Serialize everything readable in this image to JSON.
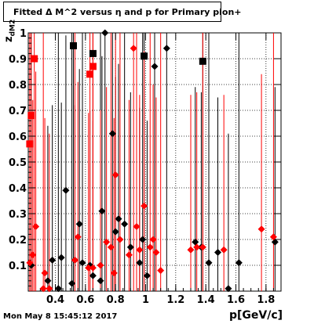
{
  "chart_data": {
    "type": "scatter",
    "title": "Fitted Δ M^2 versus η and p for Primary pion+",
    "xlabel": "p[GeV/c]",
    "ylabel": "z",
    "ylabel_sub": "dM2",
    "xlim": [
      0.22,
      1.9
    ],
    "ylim": [
      0,
      1
    ],
    "x_ticks": [
      0.4,
      0.6,
      0.8,
      1.0,
      1.2,
      1.4,
      1.6,
      1.8
    ],
    "x_tick_labels": [
      "0.4",
      "0.6",
      "0.8",
      "1",
      "1.2",
      "1.4",
      "1.6",
      "1.8"
    ],
    "y_ticks": [
      0.1,
      0.2,
      0.3,
      0.4,
      0.5,
      0.6,
      0.7,
      0.8,
      0.9,
      1.0
    ],
    "y_tick_labels": [
      "0.1",
      "0.2",
      "0.3",
      "0.4",
      "0.5",
      "0.6",
      "0.7",
      "0.8",
      "0.9",
      "1"
    ],
    "grid": true,
    "series": [
      {
        "color": "#000000",
        "marker": "diamond",
        "points": [
          [
            0.24,
            0.1
          ],
          [
            0.35,
            0.04
          ],
          [
            0.38,
            0.12
          ],
          [
            0.42,
            0.01
          ],
          [
            0.44,
            0.13
          ],
          [
            0.47,
            0.39
          ],
          [
            0.51,
            0.03
          ],
          [
            0.53,
            0.12
          ],
          [
            0.56,
            0.26
          ],
          [
            0.58,
            0.11
          ],
          [
            0.63,
            0.1
          ],
          [
            0.65,
            0.06
          ],
          [
            0.7,
            0.04
          ],
          [
            0.71,
            0.31
          ],
          [
            0.73,
            1.0
          ],
          [
            0.78,
            0.61
          ],
          [
            0.8,
            0.23
          ],
          [
            0.82,
            0.28
          ],
          [
            0.86,
            0.26
          ],
          [
            0.9,
            0.17
          ],
          [
            0.96,
            0.11
          ],
          [
            0.98,
            0.2
          ],
          [
            1.01,
            0.06
          ],
          [
            1.06,
            0.87
          ],
          [
            1.14,
            0.94
          ],
          [
            1.33,
            0.19
          ],
          [
            1.37,
            0.17
          ],
          [
            1.42,
            0.11
          ],
          [
            1.48,
            0.15
          ],
          [
            1.55,
            0.01
          ],
          [
            1.62,
            0.11
          ],
          [
            1.86,
            0.19
          ]
        ],
        "squares": [
          [
            0.52,
            0.95
          ],
          [
            0.65,
            0.92
          ],
          [
            0.99,
            0.91
          ],
          [
            1.38,
            0.89
          ]
        ]
      },
      {
        "color": "#ff0000",
        "marker": "diamond",
        "points": [
          [
            0.23,
            0.11
          ],
          [
            0.25,
            0.14
          ],
          [
            0.27,
            0.25
          ],
          [
            0.32,
            0.01
          ],
          [
            0.33,
            0.07
          ],
          [
            0.36,
            0.01
          ],
          [
            0.53,
            0.12
          ],
          [
            0.55,
            0.21
          ],
          [
            0.62,
            0.09
          ],
          [
            0.65,
            0.09
          ],
          [
            0.7,
            0.1
          ],
          [
            0.74,
            0.19
          ],
          [
            0.77,
            0.17
          ],
          [
            0.79,
            0.07
          ],
          [
            0.8,
            0.45
          ],
          [
            0.83,
            0.2
          ],
          [
            0.89,
            0.14
          ],
          [
            0.92,
            0.94
          ],
          [
            0.94,
            0.25
          ],
          [
            0.96,
            0.16
          ],
          [
            0.99,
            0.33
          ],
          [
            1.03,
            0.17
          ],
          [
            1.05,
            0.2
          ],
          [
            1.07,
            0.15
          ],
          [
            1.1,
            0.08
          ],
          [
            1.3,
            0.16
          ],
          [
            1.34,
            0.17
          ],
          [
            1.38,
            0.17
          ],
          [
            1.52,
            0.16
          ],
          [
            1.77,
            0.24
          ],
          [
            1.85,
            0.21
          ]
        ],
        "squares": [
          [
            0.23,
            0.57
          ],
          [
            0.24,
            0.68
          ],
          [
            0.26,
            0.9
          ],
          [
            0.63,
            0.84
          ],
          [
            0.65,
            0.87
          ]
        ]
      }
    ]
  },
  "footer": {
    "timestamp": "Mon May  8 15:45:12 2017"
  }
}
